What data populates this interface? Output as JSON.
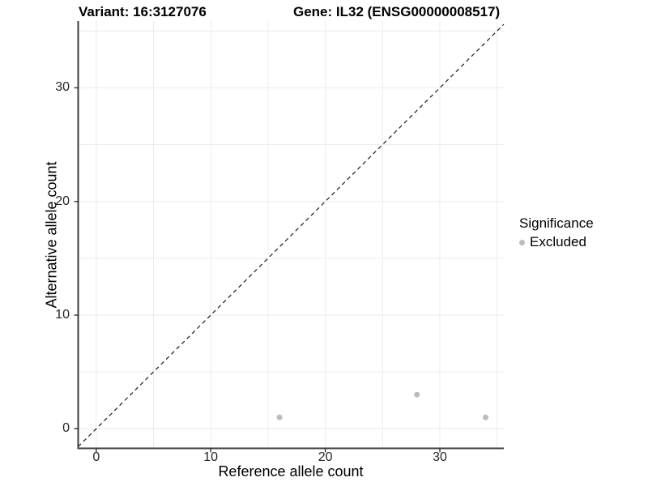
{
  "chart_data": {
    "type": "scatter",
    "title_variant": "Variant: 16:3127076",
    "title_gene": "Gene: IL32 (ENSG00000008517)",
    "xlabel": "Reference allele count",
    "ylabel": "Alternative allele count",
    "x_ticks": [
      0,
      10,
      20,
      30
    ],
    "y_ticks": [
      0,
      10,
      20,
      30
    ],
    "xlim": [
      -1.6,
      35.6
    ],
    "ylim": [
      -1.7,
      35.9
    ],
    "grid": {
      "show": true,
      "interval": 5,
      "color": "#ececec"
    },
    "reference_line": {
      "type": "identity",
      "slope": 1,
      "intercept": 0,
      "style": "dashed",
      "color": "#1a1a1a"
    },
    "legend": {
      "title": "Significance",
      "position": "right",
      "items": [
        {
          "label": "Excluded",
          "marker_color": "#bcbcbc"
        }
      ]
    },
    "series": [
      {
        "name": "Excluded",
        "marker_color": "#bcbcbc",
        "points": [
          [
            16,
            1
          ],
          [
            28,
            3
          ],
          [
            34,
            1
          ]
        ]
      }
    ]
  }
}
